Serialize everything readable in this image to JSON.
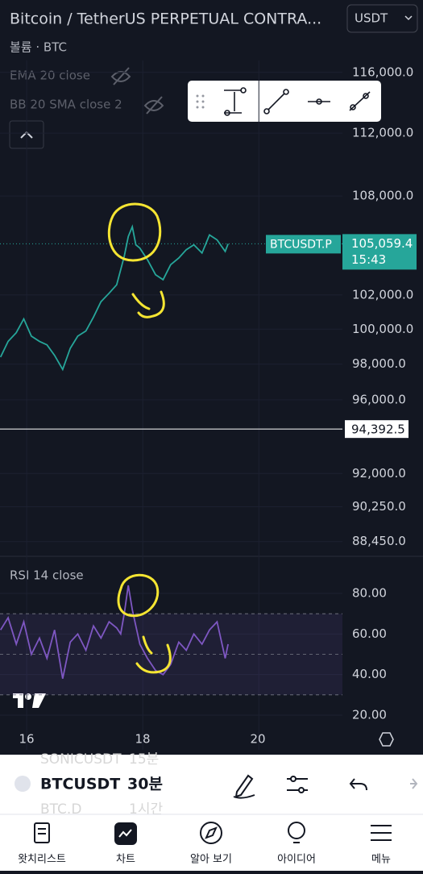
{
  "header": {
    "title": "Bitcoin / TetherUS PERPETUAL CONTRA...",
    "currency": "USDT"
  },
  "legend": {
    "volume": "볼륨 · BTC",
    "ema": "EMA 20 close",
    "bb": "BB 20 SMA close 2"
  },
  "time_axis": {
    "xlim": [
      15.54,
      21.44
    ],
    "xticks": [
      16,
      18,
      20
    ],
    "x": [
      15.55,
      15.68,
      15.82,
      15.95,
      16.08,
      16.22,
      16.35,
      16.48,
      16.62,
      16.75,
      16.88,
      17.02,
      17.15,
      17.28,
      17.42,
      17.55,
      17.62,
      17.68,
      17.75,
      17.82,
      17.88,
      17.95,
      18.08,
      18.22,
      18.35,
      18.48,
      18.62,
      18.75,
      18.88,
      19.02,
      19.15,
      19.28,
      19.42,
      19.47
    ]
  },
  "price": {
    "type": "line",
    "name": "BTCUSDT.P",
    "color": "#26a69a",
    "log": true,
    "ylim": [
      87700,
      116800
    ],
    "yticks": [
      {
        "value": 116000,
        "label": "116,000.0"
      },
      {
        "value": 112000,
        "label": "112,000.0"
      },
      {
        "value": 108000,
        "label": "108,000.0"
      },
      {
        "value": 102000,
        "label": "102,000.0"
      },
      {
        "value": 100000,
        "label": "100,000.0"
      },
      {
        "value": 98000,
        "label": "98,000.0"
      },
      {
        "value": 96000,
        "label": "96,000.0"
      },
      {
        "value": 92000,
        "label": "92,000.0"
      },
      {
        "value": 90250,
        "label": "90,250.0"
      },
      {
        "value": 88450,
        "label": "88,450.0"
      }
    ],
    "values": [
      98400,
      99300,
      99800,
      100600,
      99600,
      99300,
      99100,
      98500,
      97700,
      98900,
      99600,
      99900,
      100700,
      101600,
      102100,
      102600,
      103500,
      104300,
      105500,
      106100,
      105000,
      104800,
      104100,
      103200,
      102900,
      103800,
      104200,
      104700,
      105000,
      104500,
      105600,
      105300,
      104600,
      105059.4
    ],
    "last_price": {
      "value": 105059.4,
      "label": "105,059.4"
    },
    "countdown": "15:43",
    "crosshair": {
      "value": 94392.5,
      "label": "94,392.5"
    }
  },
  "rsi": {
    "type": "line",
    "label": "RSI 14 close",
    "color": "#7e57c2",
    "ylim": [
      2.9,
      97.5
    ],
    "yticks": [
      {
        "value": 80,
        "label": "80.00"
      },
      {
        "value": 60,
        "label": "60.00"
      },
      {
        "value": 40,
        "label": "40.00"
      },
      {
        "value": 20,
        "label": "20.00"
      }
    ],
    "bands": [
      30,
      50,
      70
    ],
    "values": [
      62,
      68,
      55,
      66,
      50,
      58,
      48,
      62,
      38,
      56,
      60,
      52,
      64,
      58,
      66,
      63,
      60,
      70,
      84,
      72,
      64,
      55,
      48,
      42,
      40,
      45,
      56,
      52,
      60,
      55,
      62,
      66,
      48,
      55
    ]
  },
  "toolbar": {
    "symbol": "BTCUSDT",
    "interval": "30분",
    "symbol_above": "SONICUSDT",
    "interval_above": "15분",
    "symbol_below": "BTC.D",
    "interval_below": "1시간"
  },
  "nav": [
    "왓치리스트",
    "차트",
    "알아 보기",
    "아이디어",
    "메뉴"
  ]
}
